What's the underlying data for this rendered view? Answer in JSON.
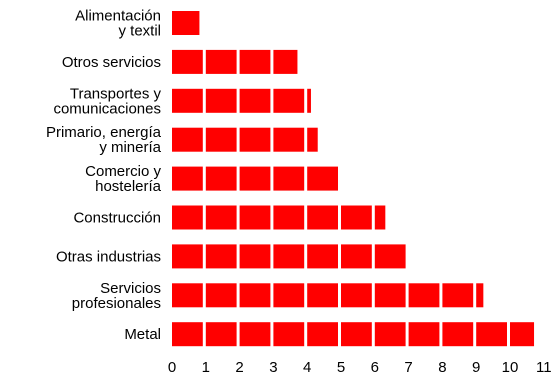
{
  "chart_data": {
    "type": "bar",
    "orientation": "horizontal",
    "categories": [
      "Alimentación\ny textil",
      "Otros servicios",
      "Transportes y\ncomunicaciones",
      "Primario, energía\ny minería",
      "Comercio y\nhostelería",
      "Construcción",
      "Otras industrias",
      "Servicios\nprofesionales",
      "Metal"
    ],
    "values": [
      0.9,
      3.8,
      4.2,
      4.4,
      5.0,
      6.4,
      7.0,
      9.3,
      10.8
    ],
    "xlim": [
      0,
      11
    ],
    "xticks": [
      "0",
      "1",
      "2",
      "3",
      "4",
      "5",
      "6",
      "7",
      "8",
      "9",
      "10",
      "11"
    ],
    "bar_color": "#ff0000",
    "segment_divider_color": "#ffffff",
    "grid": false
  }
}
